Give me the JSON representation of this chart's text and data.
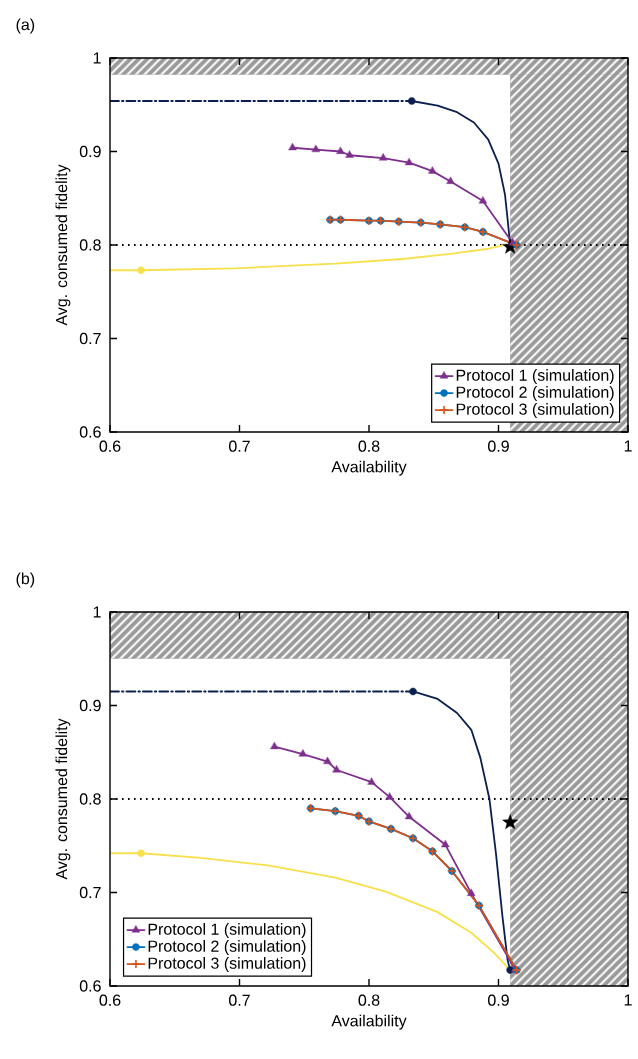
{
  "chart_data": [
    {
      "type": "line",
      "title": "(a)",
      "xlabel": "Availability",
      "ylabel": "Avg. consumed fidelity",
      "xlim": [
        0.6,
        1
      ],
      "ylim": [
        0.6,
        1
      ],
      "xticks": [
        0.6,
        0.7,
        0.8,
        0.9,
        1
      ],
      "yticks": [
        0.6,
        0.7,
        0.8,
        0.9,
        1
      ],
      "legend": "bottom right",
      "ref_lines": [
        {
          "axis": "y",
          "value": 0.8,
          "color": "#000000",
          "line_style": "dotted"
        }
      ],
      "bands": [
        {
          "axis": "x",
          "from": 0.909,
          "to": 1,
          "color": "#9a9a9a"
        },
        {
          "axis": "y",
          "from": 0.982,
          "to": 1,
          "color": "#9a9a9a"
        }
      ],
      "series": [
        {
          "type": "line",
          "color": "#0b1f4e",
          "line_style": "dashdot",
          "marker": "none",
          "x": [
            0.6,
            0.833
          ],
          "values": [
            0.954,
            0.954
          ]
        },
        {
          "type": "line",
          "color": "#0b1f4e",
          "line_style": "solid",
          "marker": "none",
          "x": [
            0.833,
            0.853,
            0.868,
            0.881,
            0.892,
            0.9,
            0.905,
            0.907,
            0.909
          ],
          "values": [
            0.954,
            0.949,
            0.942,
            0.931,
            0.913,
            0.887,
            0.854,
            0.828,
            0.8
          ]
        },
        {
          "type": "line",
          "color": "#f7e04b",
          "line_style": "solid",
          "marker": "none",
          "x": [
            0.6,
            0.624,
            0.696,
            0.774,
            0.826,
            0.866,
            0.892,
            0.905
          ],
          "values": [
            0.773,
            0.773,
            0.775,
            0.78,
            0.785,
            0.791,
            0.796,
            0.8
          ]
        },
        {
          "type": "scatter",
          "color": "#0b1f4e",
          "marker": "circle",
          "x": [
            0.833
          ],
          "values": [
            0.954
          ]
        },
        {
          "type": "scatter",
          "color": "#f7e04b",
          "marker": "circle",
          "x": [
            0.624
          ],
          "values": [
            0.773
          ]
        },
        {
          "type": "scatter",
          "color": "#000000",
          "marker": "star",
          "x": [
            0.909
          ],
          "values": [
            0.798
          ]
        },
        {
          "name": "Protocol 1 (simulation)",
          "type": "line",
          "color": "#7e2f8e",
          "marker": "triangle",
          "x": [
            0.741,
            0.759,
            0.778,
            0.785,
            0.811,
            0.831,
            0.849,
            0.863,
            0.888,
            0.911
          ],
          "values": [
            0.904,
            0.902,
            0.9,
            0.896,
            0.893,
            0.888,
            0.879,
            0.868,
            0.847,
            0.802
          ]
        },
        {
          "name": "Protocol 2 (simulation)",
          "type": "line",
          "color": "#0072bd",
          "marker": "circle",
          "x": [
            0.77,
            0.778,
            0.8,
            0.809,
            0.823,
            0.84,
            0.855,
            0.874,
            0.888,
            0.914
          ],
          "values": [
            0.827,
            0.827,
            0.826,
            0.826,
            0.825,
            0.824,
            0.822,
            0.819,
            0.814,
            0.8
          ]
        },
        {
          "name": "Protocol 3 (simulation)",
          "type": "line",
          "color": "#d95319",
          "marker": "cross",
          "x": [
            0.77,
            0.778,
            0.8,
            0.809,
            0.823,
            0.84,
            0.855,
            0.874,
            0.888,
            0.914
          ],
          "values": [
            0.827,
            0.827,
            0.826,
            0.826,
            0.825,
            0.824,
            0.822,
            0.819,
            0.814,
            0.8
          ]
        }
      ]
    },
    {
      "type": "line",
      "title": "(b)",
      "xlabel": "Availability",
      "ylabel": "Avg. consumed fidelity",
      "xlim": [
        0.6,
        1
      ],
      "ylim": [
        0.6,
        1
      ],
      "xticks": [
        0.6,
        0.7,
        0.8,
        0.9,
        1
      ],
      "yticks": [
        0.6,
        0.7,
        0.8,
        0.9,
        1
      ],
      "legend": "bottom left",
      "ref_lines": [
        {
          "axis": "y",
          "value": 0.8,
          "color": "#000000",
          "line_style": "dotted"
        }
      ],
      "bands": [
        {
          "axis": "x",
          "from": 0.909,
          "to": 1,
          "color": "#9a9a9a"
        },
        {
          "axis": "y",
          "from": 0.95,
          "to": 1,
          "color": "#9a9a9a"
        }
      ],
      "series": [
        {
          "type": "line",
          "color": "#0b1f4e",
          "line_style": "dashdot",
          "marker": "none",
          "x": [
            0.6,
            0.834
          ],
          "values": [
            0.915,
            0.915
          ]
        },
        {
          "type": "line",
          "color": "#0b1f4e",
          "line_style": "solid",
          "marker": "none",
          "x": [
            0.834,
            0.853,
            0.868,
            0.879,
            0.886,
            0.893,
            0.898,
            0.903,
            0.907,
            0.909
          ],
          "values": [
            0.915,
            0.907,
            0.892,
            0.874,
            0.844,
            0.8,
            0.742,
            0.675,
            0.628,
            0.617
          ]
        },
        {
          "type": "line",
          "color": "#f7e04b",
          "line_style": "solid",
          "marker": "none",
          "x": [
            0.6,
            0.624,
            0.67,
            0.722,
            0.774,
            0.813,
            0.853,
            0.879,
            0.897,
            0.907
          ],
          "values": [
            0.742,
            0.742,
            0.737,
            0.729,
            0.716,
            0.701,
            0.679,
            0.657,
            0.635,
            0.62
          ]
        },
        {
          "type": "scatter",
          "color": "#0b1f4e",
          "marker": "circle",
          "x": [
            0.834,
            0.909
          ],
          "values": [
            0.915,
            0.617
          ]
        },
        {
          "type": "scatter",
          "color": "#f7e04b",
          "marker": "circle",
          "x": [
            0.624
          ],
          "values": [
            0.742
          ]
        },
        {
          "type": "scatter",
          "color": "#000000",
          "marker": "star",
          "x": [
            0.909
          ],
          "values": [
            0.775
          ]
        },
        {
          "name": "Protocol 1 (simulation)",
          "type": "line",
          "color": "#7e2f8e",
          "marker": "triangle",
          "x": [
            0.727,
            0.749,
            0.768,
            0.775,
            0.802,
            0.816,
            0.831,
            0.859,
            0.879,
            0.913
          ],
          "values": [
            0.856,
            0.848,
            0.84,
            0.831,
            0.818,
            0.802,
            0.781,
            0.751,
            0.699,
            0.617
          ]
        },
        {
          "name": "Protocol 2 (simulation)",
          "type": "line",
          "color": "#0072bd",
          "marker": "circle",
          "x": [
            0.755,
            0.774,
            0.792,
            0.8,
            0.817,
            0.834,
            0.849,
            0.864,
            0.885,
            0.914
          ],
          "values": [
            0.79,
            0.787,
            0.782,
            0.776,
            0.768,
            0.758,
            0.744,
            0.723,
            0.686,
            0.617
          ]
        },
        {
          "name": "Protocol 3 (simulation)",
          "type": "line",
          "color": "#d95319",
          "marker": "cross",
          "x": [
            0.755,
            0.774,
            0.792,
            0.8,
            0.817,
            0.834,
            0.849,
            0.864,
            0.885,
            0.914
          ],
          "values": [
            0.79,
            0.787,
            0.782,
            0.776,
            0.768,
            0.758,
            0.744,
            0.723,
            0.686,
            0.617
          ]
        }
      ]
    }
  ]
}
